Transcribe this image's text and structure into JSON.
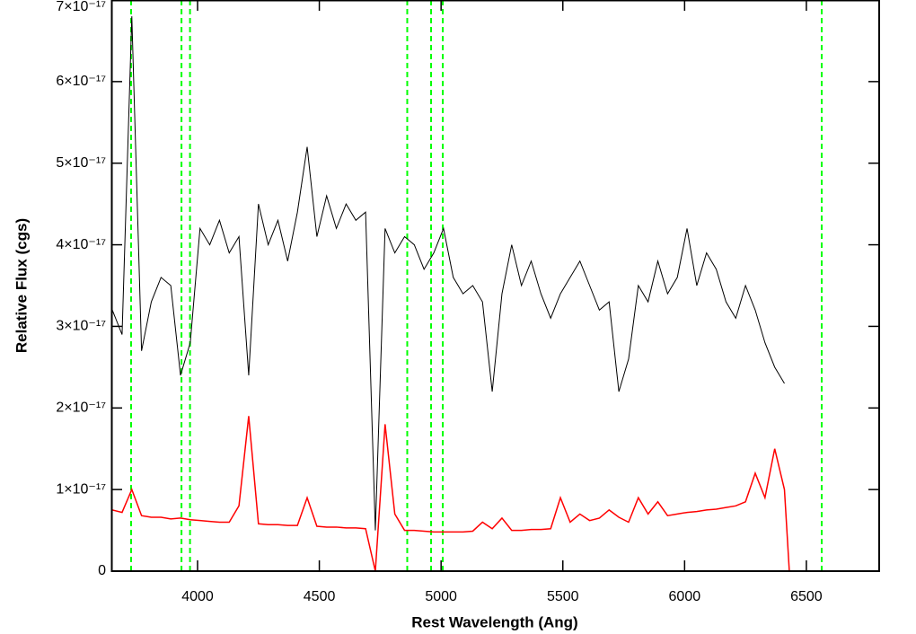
{
  "chart_data": {
    "type": "line",
    "xlabel": "Rest Wavelength (Ang)",
    "ylabel": "Relative Flux (cgs)",
    "x": [
      3650,
      3690,
      3730,
      3770,
      3810,
      3850,
      3890,
      3930,
      3970,
      4010,
      4050,
      4090,
      4130,
      4170,
      4210,
      4250,
      4290,
      4330,
      4370,
      4410,
      4450,
      4490,
      4530,
      4570,
      4610,
      4650,
      4690,
      4730,
      4770,
      4810,
      4850,
      4890,
      4930,
      4970,
      5010,
      5050,
      5090,
      5130,
      5170,
      5210,
      5250,
      5290,
      5330,
      5370,
      5410,
      5450,
      5490,
      5530,
      5570,
      5610,
      5650,
      5690,
      5730,
      5770,
      5810,
      5850,
      5890,
      5930,
      5970,
      6010,
      6050,
      6090,
      6130,
      6170,
      6210,
      6250,
      6290,
      6330,
      6370,
      6410,
      6430,
      6800
    ],
    "series": [
      {
        "color": "#000000",
        "values": [
          3.2e-17,
          2.9e-17,
          6.8e-17,
          2.7e-17,
          3.3e-17,
          3.6e-17,
          3.5e-17,
          2.4e-17,
          2.8e-17,
          4.2e-17,
          4e-17,
          4.3e-17,
          3.9e-17,
          4.1e-17,
          2.4e-17,
          4.5e-17,
          4e-17,
          4.3e-17,
          3.8e-17,
          4.4e-17,
          5.2e-17,
          4.1e-17,
          4.6e-17,
          4.2e-17,
          4.5e-17,
          4.3e-17,
          4.4e-17,
          5e-18,
          4.2e-17,
          3.9e-17,
          4.1e-17,
          4e-17,
          3.7e-17,
          3.9e-17,
          4.2e-17,
          3.6e-17,
          3.4e-17,
          3.5e-17,
          3.3e-17,
          2.2e-17,
          3.4e-17,
          4e-17,
          3.5e-17,
          3.8e-17,
          3.4e-17,
          3.1e-17,
          3.4e-17,
          3.6e-17,
          3.8e-17,
          3.5e-17,
          3.2e-17,
          3.3e-17,
          2.2e-17,
          2.6e-17,
          3.5e-17,
          3.3e-17,
          3.8e-17,
          3.4e-17,
          3.6e-17,
          4.2e-17,
          3.5e-17,
          3.9e-17,
          3.7e-17,
          3.3e-17,
          3.1e-17,
          3.5e-17,
          3.2e-17,
          2.8e-17,
          2.5e-17,
          2.3e-17,
          null,
          null
        ]
      },
      {
        "color": "#ff0000",
        "values": [
          7.5e-18,
          7.2e-18,
          1e-17,
          6.8e-18,
          6.6e-18,
          6.6e-18,
          6.4e-18,
          6.5e-18,
          6.3e-18,
          6.2e-18,
          6.1e-18,
          6e-18,
          6e-18,
          8e-18,
          1.9e-17,
          5.8e-18,
          5.7e-18,
          5.7e-18,
          5.6e-18,
          5.6e-18,
          9e-18,
          5.5e-18,
          5.4e-18,
          5.4e-18,
          5.3e-18,
          5.3e-18,
          5.2e-18,
          0,
          1.8e-17,
          7e-18,
          5e-18,
          5e-18,
          4.9e-18,
          4.8e-18,
          4.8e-18,
          4.8e-18,
          4.8e-18,
          4.9e-18,
          6e-18,
          5.2e-18,
          6.5e-18,
          5e-18,
          5e-18,
          5.1e-18,
          5.1e-18,
          5.2e-18,
          9e-18,
          6e-18,
          7e-18,
          6.2e-18,
          6.5e-18,
          7.5e-18,
          6.6e-18,
          6e-18,
          9e-18,
          7e-18,
          8.5e-18,
          6.8e-18,
          7e-18,
          7.2e-18,
          7.3e-18,
          7.5e-18,
          7.6e-18,
          7.8e-18,
          8e-18,
          8.5e-18,
          1.2e-17,
          9e-18,
          1.5e-17,
          1e-17,
          0,
          0
        ]
      }
    ],
    "lines": {
      "color": "#00ff00",
      "x": [
        3727,
        3934,
        3969,
        4861,
        4959,
        5007,
        6563
      ]
    },
    "xlim": [
      3646,
      6799
    ],
    "ylim": [
      0,
      7e-17
    ],
    "xticks": [
      4000,
      4500,
      5000,
      5500,
      6000,
      6500
    ],
    "yticks": [
      0,
      {
        "value": 1e-17,
        "label": "1×10⁻¹⁷"
      },
      {
        "value": 2e-17,
        "label": "2×10⁻¹⁷"
      },
      {
        "value": 3e-17,
        "label": "3×10⁻¹⁷"
      },
      {
        "value": 4e-17,
        "label": "4×10⁻¹⁷"
      },
      {
        "value": 5e-17,
        "label": "5×10⁻¹⁷"
      },
      {
        "value": 6e-17,
        "label": "6×10⁻¹⁷"
      },
      {
        "value": 7e-17,
        "label": "7×10⁻¹⁷"
      }
    ]
  }
}
